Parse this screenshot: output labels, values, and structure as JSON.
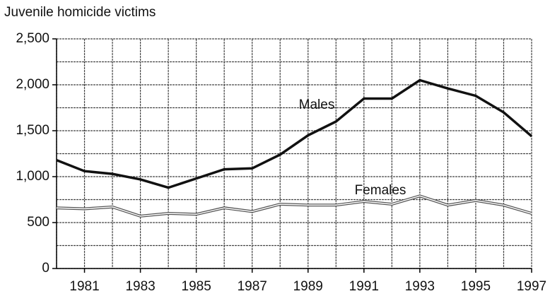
{
  "chart_data": {
    "type": "line",
    "title": "Juvenile homicide victims",
    "x": [
      1980,
      1981,
      1982,
      1983,
      1984,
      1985,
      1986,
      1987,
      1988,
      1989,
      1990,
      1991,
      1992,
      1993,
      1994,
      1995,
      1996,
      1997
    ],
    "series": [
      {
        "name": "Males",
        "color": "#111111",
        "values": [
          1180,
          1060,
          1030,
          970,
          880,
          980,
          1080,
          1090,
          1240,
          1450,
          1600,
          1850,
          1850,
          2050,
          1960,
          1880,
          1700,
          1440
        ]
      },
      {
        "name": "Females",
        "color": "#555555",
        "values": [
          660,
          650,
          670,
          570,
          600,
          590,
          660,
          620,
          700,
          690,
          690,
          730,
          700,
          790,
          690,
          740,
          690,
          600
        ]
      }
    ],
    "xlim": [
      1980,
      1997
    ],
    "xticks": [
      1981,
      1983,
      1985,
      1987,
      1989,
      1991,
      1993,
      1995,
      1997
    ],
    "xgrid": [
      1980,
      1981,
      1982,
      1983,
      1984,
      1985,
      1986,
      1987,
      1988,
      1989,
      1990,
      1991,
      1992,
      1993,
      1994,
      1995,
      1996,
      1997
    ],
    "ylim": [
      0,
      2500
    ],
    "yticks": [
      0,
      {
        "value": 500,
        "label": "500"
      },
      {
        "value": 1000,
        "label": "1,000"
      },
      {
        "value": 1500,
        "label": "1,500"
      },
      {
        "value": 2000,
        "label": "2,000"
      },
      {
        "value": 2500,
        "label": "2,500"
      }
    ],
    "ygrid": [
      0,
      250,
      500,
      750,
      1000,
      1250,
      1500,
      1750,
      2000,
      2250,
      2500
    ],
    "grid": true
  }
}
